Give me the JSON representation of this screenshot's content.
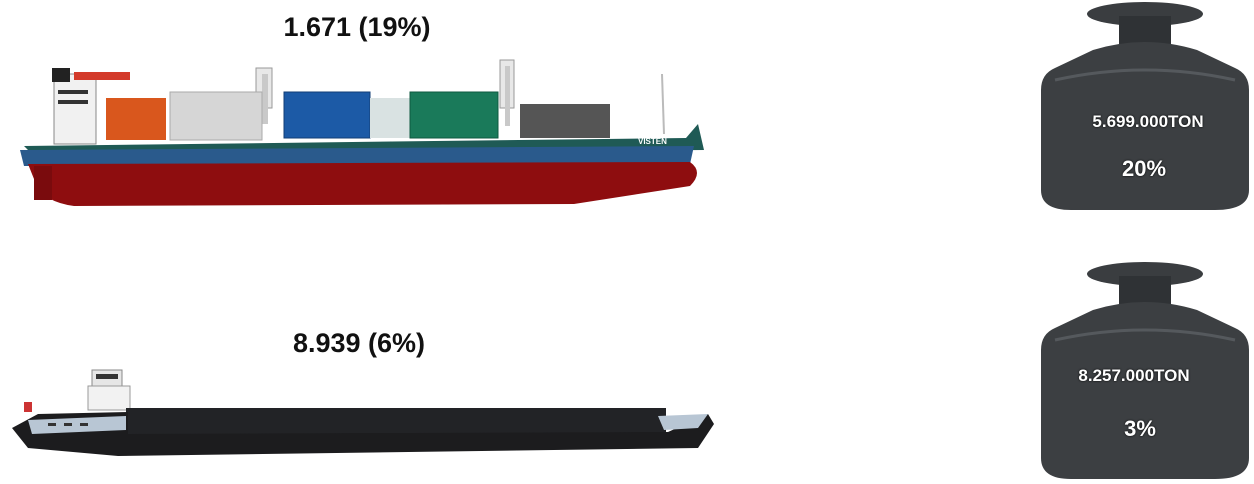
{
  "ships": [
    {
      "label": "1.671 (19%)",
      "type": "cargo-ship",
      "hull_name": "VISTEN"
    },
    {
      "label": "8.939 (6%)",
      "type": "inland-barge"
    }
  ],
  "weights": [
    {
      "tons": "5.699.000TON",
      "percent": "20%"
    },
    {
      "tons": "8.257.000TON",
      "percent": "3%"
    }
  ],
  "colors": {
    "hull_red": "#8e0d0f",
    "hull_stripe": "#1f5a55",
    "hull_blue_band": "#2a5a8c",
    "barge_hull": "#1c1c1e",
    "weight_iron": "#3c3f42"
  }
}
